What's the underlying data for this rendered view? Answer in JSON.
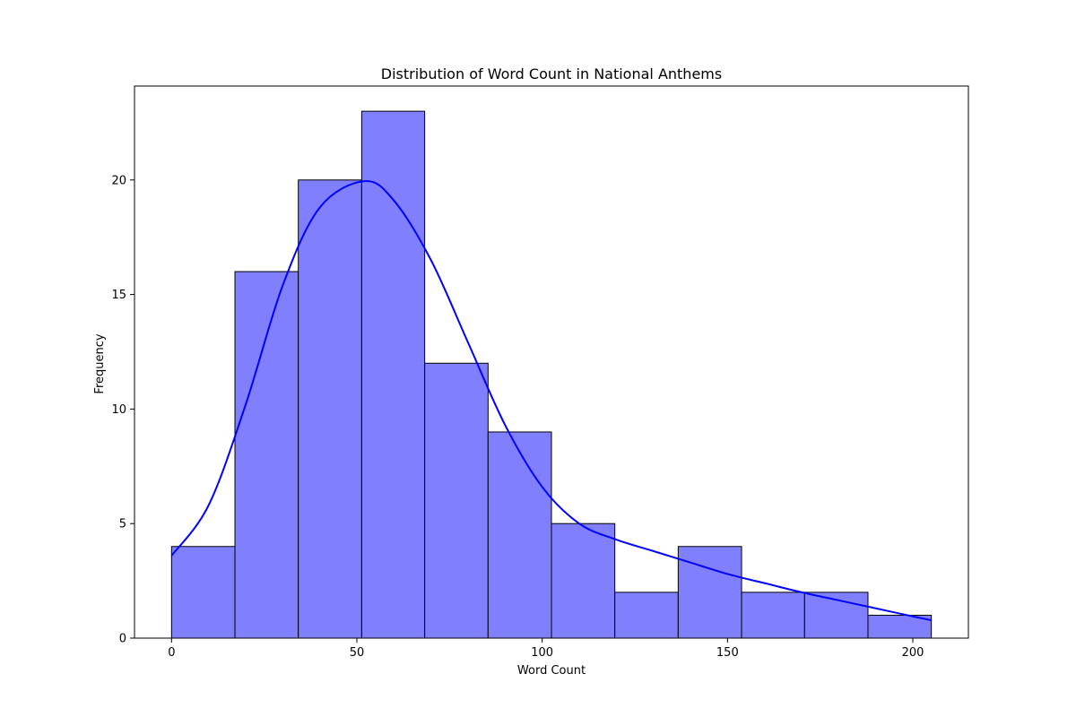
{
  "chart_data": {
    "type": "bar",
    "title": "Distribution of Word Count in National Anthems",
    "xlabel": "Word Count",
    "ylabel": "Frequency",
    "bins": [
      {
        "start": 0,
        "end": 17.1,
        "count": 4
      },
      {
        "start": 17.1,
        "end": 34.2,
        "count": 16
      },
      {
        "start": 34.2,
        "end": 51.3,
        "count": 20
      },
      {
        "start": 51.3,
        "end": 68.3,
        "count": 23
      },
      {
        "start": 68.3,
        "end": 85.4,
        "count": 12
      },
      {
        "start": 85.4,
        "end": 102.5,
        "count": 9
      },
      {
        "start": 102.5,
        "end": 119.6,
        "count": 5
      },
      {
        "start": 119.6,
        "end": 136.7,
        "count": 2
      },
      {
        "start": 136.7,
        "end": 153.8,
        "count": 4
      },
      {
        "start": 153.8,
        "end": 170.8,
        "count": 2
      },
      {
        "start": 170.8,
        "end": 187.9,
        "count": 2
      },
      {
        "start": 187.9,
        "end": 205,
        "count": 1
      }
    ],
    "kde": {
      "x": [
        0,
        10,
        20,
        30,
        40,
        52,
        60,
        70,
        80,
        90,
        100,
        110,
        120,
        130,
        140,
        150,
        160,
        170,
        180,
        190,
        200,
        205
      ],
      "y": [
        3.6,
        5.8,
        10.2,
        15.4,
        18.8,
        19.95,
        19.1,
        16.5,
        12.9,
        9.3,
        6.6,
        5.0,
        4.3,
        3.8,
        3.3,
        2.8,
        2.4,
        2.0,
        1.65,
        1.3,
        0.95,
        0.78
      ]
    },
    "xlim": [
      -10,
      215
    ],
    "ylim": [
      0,
      24.1
    ],
    "xticks": [
      0,
      50,
      100,
      150,
      200
    ],
    "yticks": [
      0,
      5,
      10,
      15,
      20
    ],
    "grid": false,
    "colors": {
      "bar_fill": "#8080ff",
      "bar_edge": "#000000",
      "kde_line": "#0000ff"
    }
  }
}
